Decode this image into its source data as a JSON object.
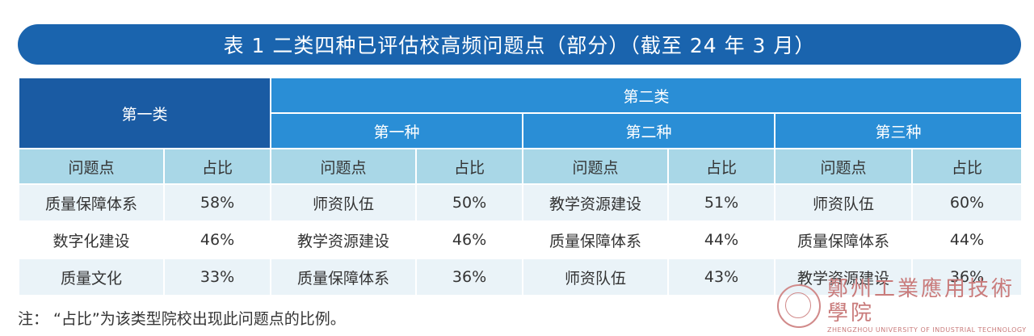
{
  "title": "表 1  二类四种已评估校高频问题点（部分）（截至 24 年 3 月）",
  "table": {
    "type1_label": "第一类",
    "type2_label": "第二类",
    "kinds": [
      "第一种",
      "第二种",
      "第三种"
    ],
    "col_problem": "问题点",
    "col_ratio": "占比",
    "rows": [
      [
        "质量保障体系",
        "58%",
        "师资队伍",
        "50%",
        "教学资源建设",
        "51%",
        "师资队伍",
        "60%"
      ],
      [
        "数字化建设",
        "46%",
        "教学资源建设",
        "46%",
        "质量保障体系",
        "44%",
        "质量保障体系",
        "44%"
      ],
      [
        "质量文化",
        "33%",
        "质量保障体系",
        "36%",
        "师资队伍",
        "43%",
        "教学资源建设",
        "36%"
      ]
    ]
  },
  "note": "注：  “占比”为该类型院校出现此问题点的比例。",
  "logo": {
    "name_cn": "鄭州工業應用技術學院",
    "name_en": "ZHENGZHOU UNIVERSITY OF INDUSTRIAL TECHNOLOGY",
    "color": "#c97b7b"
  },
  "colors": {
    "title_bg": "#1a64ae",
    "type1_bg": "#1a5ba3",
    "type2_bg": "#2a8ed6",
    "colheader_bg": "#a9d7e7",
    "row_alt_bg": "#eaf3f8"
  }
}
